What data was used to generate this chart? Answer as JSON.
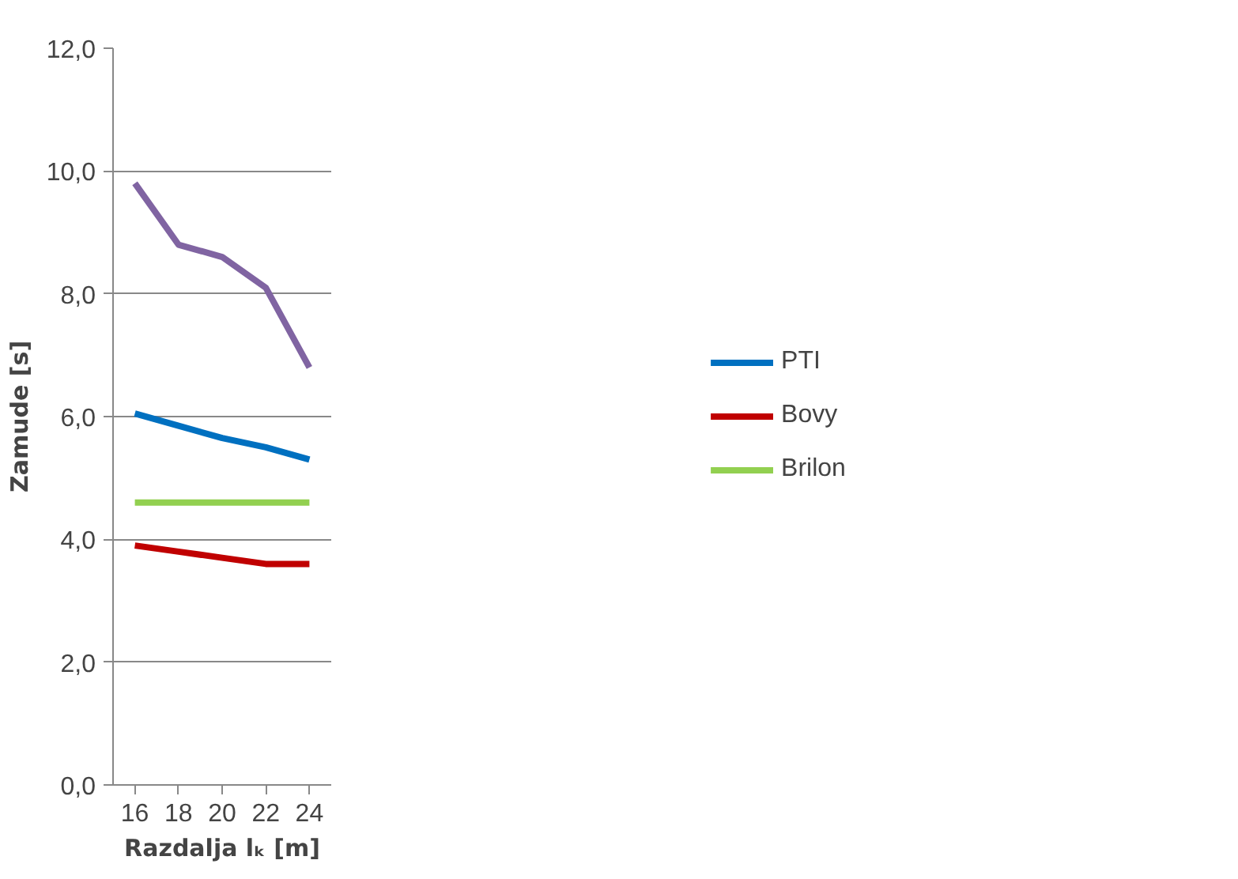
{
  "chart_data": {
    "type": "line",
    "xlabel": "Razdalja lₖ [m]",
    "ylabel": "Zamude [s]",
    "categories": [
      "16",
      "18",
      "20",
      "22",
      "24"
    ],
    "series": [
      {
        "color": "#8064a2",
        "values": [
          9.8,
          8.8,
          8.6,
          8.1,
          6.8
        ]
      },
      {
        "name": "PTI",
        "color": "#0070c0",
        "values": [
          6.05,
          5.85,
          5.65,
          5.5,
          5.3
        ]
      },
      {
        "name": "Bovy",
        "color": "#c00000",
        "values": [
          3.9,
          3.8,
          3.7,
          3.6,
          3.6
        ]
      },
      {
        "name": "Brilon",
        "color": "#92d050",
        "values": [
          4.6,
          4.6,
          4.6,
          4.6,
          4.6
        ]
      }
    ],
    "ylim": [
      0,
      12
    ],
    "yticks": [
      {
        "value": 0,
        "label": "0,0"
      },
      {
        "value": 2,
        "label": "2,0"
      },
      {
        "value": 4,
        "label": "4,0"
      },
      {
        "value": 6,
        "label": "6,0"
      },
      {
        "value": 8,
        "label": "8,0"
      },
      {
        "value": 10,
        "label": "10,0"
      },
      {
        "value": 12,
        "label": "12,0"
      }
    ],
    "grid": "y",
    "legend": "right",
    "marker": "none",
    "line_style": "solid"
  }
}
